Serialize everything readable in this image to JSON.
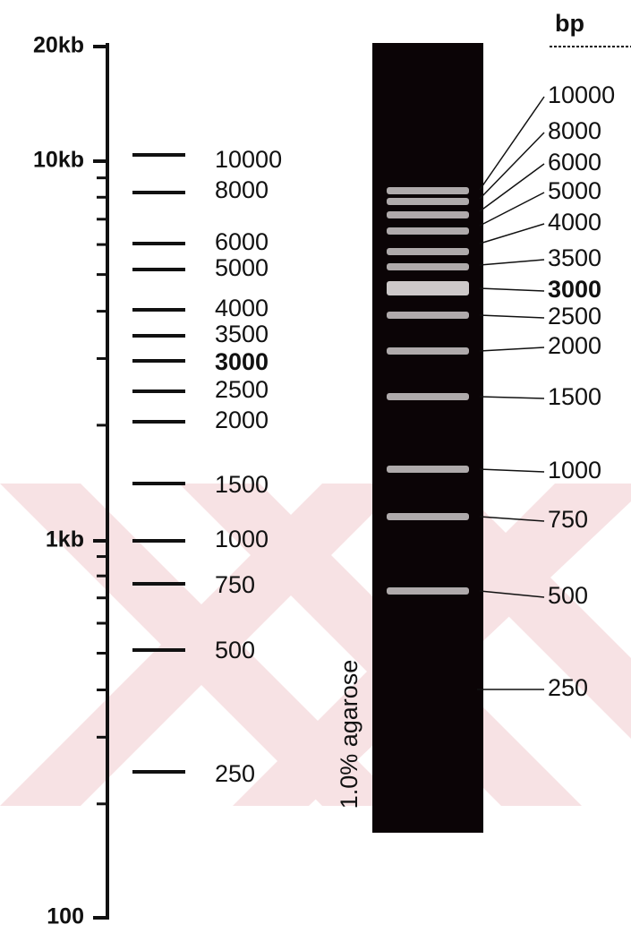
{
  "axis": {
    "labels": [
      "20kb",
      "10kb",
      "1kb",
      "100"
    ]
  },
  "ladder": {
    "bands": [
      "10000",
      "8000",
      "6000",
      "5000",
      "4000",
      "3500",
      "3000",
      "2500",
      "2000",
      "1500",
      "1000",
      "750",
      "500",
      "250"
    ]
  },
  "gel": {
    "unit": "bp",
    "label": "1.0% agarose",
    "bands": [
      "10000",
      "8000",
      "6000",
      "5000",
      "4000",
      "3500",
      "3000",
      "2500",
      "2000",
      "1500",
      "1000",
      "750",
      "500",
      "250"
    ]
  }
}
